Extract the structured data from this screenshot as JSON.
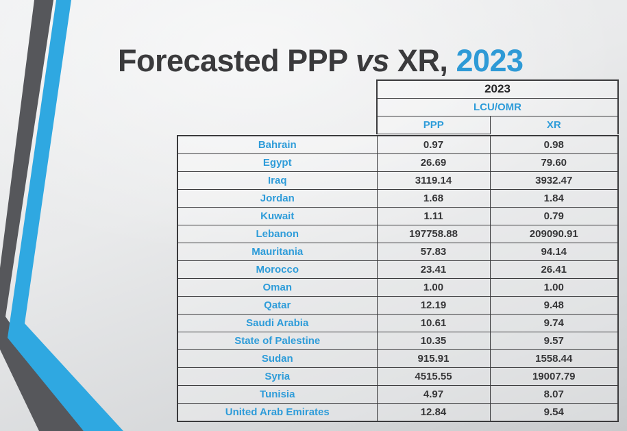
{
  "title": {
    "part1": "Forecasted PPP ",
    "part2_italic": "vs",
    "part3": " XR, ",
    "year": "2023"
  },
  "colors": {
    "accent_blue_text": "#2e9cd9",
    "title_year_blue": "#2e9ad6",
    "stripe_blue": "#2fa8e1",
    "stripe_gray": "#56575b",
    "dark_text": "#3a3a3c",
    "table_border": "#3a3a3c",
    "background_light": "#eceded",
    "background_dark": "#c8cacc"
  },
  "table": {
    "year_header": "2023",
    "unit_header": "LCU/OMR",
    "columns": [
      "PPP",
      "XR"
    ],
    "rows": [
      {
        "country": "Bahrain",
        "ppp": "0.97",
        "xr": "0.98"
      },
      {
        "country": "Egypt",
        "ppp": "26.69",
        "xr": "79.60"
      },
      {
        "country": "Iraq",
        "ppp": "3119.14",
        "xr": "3932.47"
      },
      {
        "country": "Jordan",
        "ppp": "1.68",
        "xr": "1.84"
      },
      {
        "country": "Kuwait",
        "ppp": "1.11",
        "xr": "0.79"
      },
      {
        "country": "Lebanon",
        "ppp": "197758.88",
        "xr": "209090.91"
      },
      {
        "country": "Mauritania",
        "ppp": "57.83",
        "xr": "94.14"
      },
      {
        "country": "Morocco",
        "ppp": "23.41",
        "xr": "26.41"
      },
      {
        "country": "Oman",
        "ppp": "1.00",
        "xr": "1.00"
      },
      {
        "country": "Qatar",
        "ppp": "12.19",
        "xr": "9.48"
      },
      {
        "country": "Saudi Arabia",
        "ppp": "10.61",
        "xr": "9.74"
      },
      {
        "country": "State of Palestine",
        "ppp": "10.35",
        "xr": "9.57"
      },
      {
        "country": "Sudan",
        "ppp": "915.91",
        "xr": "1558.44"
      },
      {
        "country": "Syria",
        "ppp": "4515.55",
        "xr": "19007.79"
      },
      {
        "country": "Tunisia",
        "ppp": "4.97",
        "xr": "8.07"
      },
      {
        "country": "United Arab Emirates",
        "ppp": "12.84",
        "xr": "9.54"
      }
    ]
  }
}
